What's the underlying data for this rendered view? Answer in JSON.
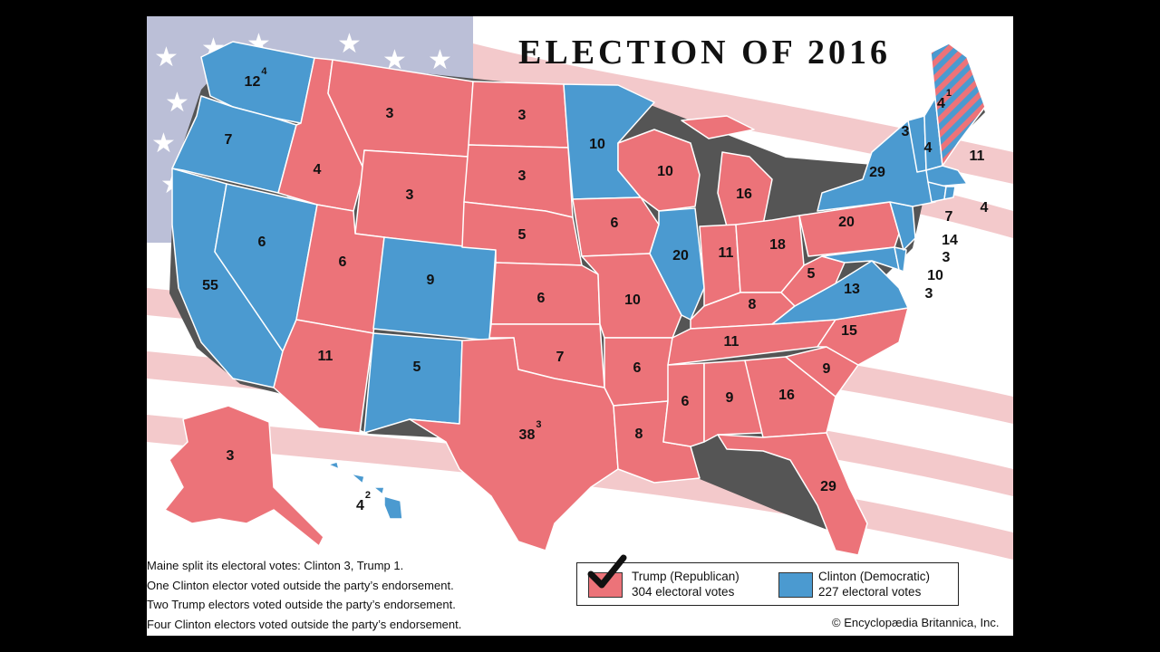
{
  "title": "ELECTION OF 2016",
  "colors": {
    "republican": "#ec7379",
    "democratic": "#4b9ad0",
    "border": "#ffffff",
    "shadow": "#555555"
  },
  "states": [
    {
      "name": "Washington",
      "party": "D",
      "votes": "12",
      "sup": "4"
    },
    {
      "name": "Oregon",
      "party": "D",
      "votes": "7",
      "sup": ""
    },
    {
      "name": "California",
      "party": "D",
      "votes": "55",
      "sup": ""
    },
    {
      "name": "Nevada",
      "party": "D",
      "votes": "6",
      "sup": ""
    },
    {
      "name": "Idaho",
      "party": "R",
      "votes": "4",
      "sup": ""
    },
    {
      "name": "Montana",
      "party": "R",
      "votes": "3",
      "sup": ""
    },
    {
      "name": "Wyoming",
      "party": "R",
      "votes": "3",
      "sup": ""
    },
    {
      "name": "Utah",
      "party": "R",
      "votes": "6",
      "sup": ""
    },
    {
      "name": "Colorado",
      "party": "D",
      "votes": "9",
      "sup": ""
    },
    {
      "name": "Arizona",
      "party": "R",
      "votes": "11",
      "sup": ""
    },
    {
      "name": "New Mexico",
      "party": "D",
      "votes": "5",
      "sup": ""
    },
    {
      "name": "North Dakota",
      "party": "R",
      "votes": "3",
      "sup": ""
    },
    {
      "name": "South Dakota",
      "party": "R",
      "votes": "3",
      "sup": ""
    },
    {
      "name": "Nebraska",
      "party": "R",
      "votes": "5",
      "sup": ""
    },
    {
      "name": "Kansas",
      "party": "R",
      "votes": "6",
      "sup": ""
    },
    {
      "name": "Oklahoma",
      "party": "R",
      "votes": "7",
      "sup": ""
    },
    {
      "name": "Texas",
      "party": "R",
      "votes": "38",
      "sup": "3"
    },
    {
      "name": "Minnesota",
      "party": "D",
      "votes": "10",
      "sup": ""
    },
    {
      "name": "Iowa",
      "party": "R",
      "votes": "6",
      "sup": ""
    },
    {
      "name": "Missouri",
      "party": "R",
      "votes": "10",
      "sup": ""
    },
    {
      "name": "Arkansas",
      "party": "R",
      "votes": "6",
      "sup": ""
    },
    {
      "name": "Louisiana",
      "party": "R",
      "votes": "8",
      "sup": ""
    },
    {
      "name": "Wisconsin",
      "party": "R",
      "votes": "10",
      "sup": ""
    },
    {
      "name": "Illinois",
      "party": "D",
      "votes": "20",
      "sup": ""
    },
    {
      "name": "Michigan",
      "party": "R",
      "votes": "16",
      "sup": ""
    },
    {
      "name": "Indiana",
      "party": "R",
      "votes": "11",
      "sup": ""
    },
    {
      "name": "Ohio",
      "party": "R",
      "votes": "18",
      "sup": ""
    },
    {
      "name": "Kentucky",
      "party": "R",
      "votes": "8",
      "sup": ""
    },
    {
      "name": "Tennessee",
      "party": "R",
      "votes": "11",
      "sup": ""
    },
    {
      "name": "Mississippi",
      "party": "R",
      "votes": "6",
      "sup": ""
    },
    {
      "name": "Alabama",
      "party": "R",
      "votes": "9",
      "sup": ""
    },
    {
      "name": "Georgia",
      "party": "R",
      "votes": "16",
      "sup": ""
    },
    {
      "name": "Florida",
      "party": "R",
      "votes": "29",
      "sup": ""
    },
    {
      "name": "South Carolina",
      "party": "R",
      "votes": "9",
      "sup": ""
    },
    {
      "name": "North Carolina",
      "party": "R",
      "votes": "15",
      "sup": ""
    },
    {
      "name": "Virginia",
      "party": "D",
      "votes": "13",
      "sup": ""
    },
    {
      "name": "West Virginia",
      "party": "R",
      "votes": "5",
      "sup": ""
    },
    {
      "name": "Pennsylvania",
      "party": "R",
      "votes": "20",
      "sup": ""
    },
    {
      "name": "New York",
      "party": "D",
      "votes": "29",
      "sup": ""
    },
    {
      "name": "Vermont",
      "party": "D",
      "votes": "3",
      "sup": ""
    },
    {
      "name": "New Hampshire",
      "party": "D",
      "votes": "4",
      "sup": ""
    },
    {
      "name": "Maine",
      "party": "split",
      "votes": "4",
      "sup": "1"
    },
    {
      "name": "Massachusetts",
      "party": "D",
      "votes": "11",
      "sup": ""
    },
    {
      "name": "Rhode Island",
      "party": "D",
      "votes": "4",
      "sup": ""
    },
    {
      "name": "Connecticut",
      "party": "D",
      "votes": "7",
      "sup": ""
    },
    {
      "name": "New Jersey",
      "party": "D",
      "votes": "14",
      "sup": ""
    },
    {
      "name": "Delaware",
      "party": "D",
      "votes": "3",
      "sup": ""
    },
    {
      "name": "Maryland",
      "party": "D",
      "votes": "10",
      "sup": ""
    },
    {
      "name": "District of Columbia",
      "party": "D",
      "votes": "3",
      "sup": ""
    },
    {
      "name": "Alaska",
      "party": "R",
      "votes": "3",
      "sup": ""
    },
    {
      "name": "Hawaii",
      "party": "D",
      "votes": "4",
      "sup": "2"
    }
  ],
  "notes": [
    "Maine split its electoral votes: Clinton 3, Trump 1.",
    "One Clinton elector voted outside the party’s endorsement.",
    "Two Trump electors voted outside the party’s endorsement.",
    "Four Clinton electors voted outside the party’s endorsement."
  ],
  "legend": {
    "trump_name": "Trump (Republican)",
    "trump_votes": "304 electoral votes",
    "clinton_name": "Clinton (Democratic)",
    "clinton_votes": "227 electoral votes",
    "winner": "Trump"
  },
  "credit": "© Encyclopædia Britannica, Inc."
}
